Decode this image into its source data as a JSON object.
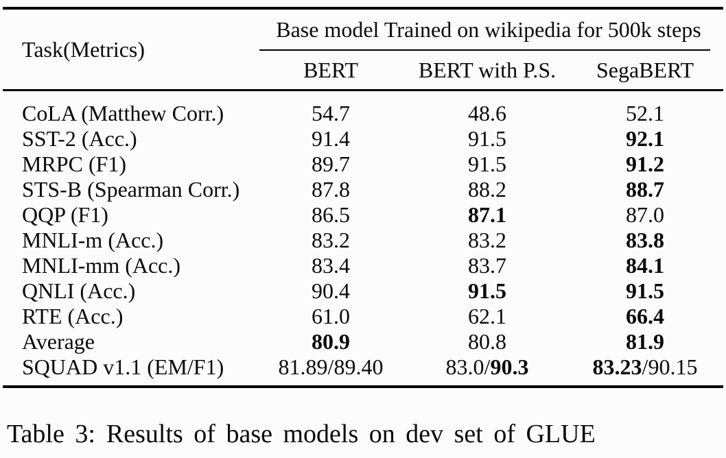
{
  "table": {
    "corner_header": "Task(Metrics)",
    "span_header": "Base model Trained on wikipedia for 500k steps",
    "columns": [
      "BERT",
      "BERT with P.S.",
      "SegaBERT"
    ],
    "rows": [
      {
        "task": "CoLA (Matthew Corr.)",
        "cells": [
          [
            {
              "text": "54.7",
              "bold": false
            }
          ],
          [
            {
              "text": "48.6",
              "bold": false
            }
          ],
          [
            {
              "text": "52.1",
              "bold": false
            }
          ]
        ]
      },
      {
        "task": "SST-2 (Acc.)",
        "cells": [
          [
            {
              "text": "91.4",
              "bold": false
            }
          ],
          [
            {
              "text": "91.5",
              "bold": false
            }
          ],
          [
            {
              "text": "92.1",
              "bold": true
            }
          ]
        ]
      },
      {
        "task": "MRPC (F1)",
        "cells": [
          [
            {
              "text": "89.7",
              "bold": false
            }
          ],
          [
            {
              "text": "91.5",
              "bold": false
            }
          ],
          [
            {
              "text": "91.2",
              "bold": true
            }
          ]
        ]
      },
      {
        "task": "STS-B (Spearman Corr.)",
        "cells": [
          [
            {
              "text": "87.8",
              "bold": false
            }
          ],
          [
            {
              "text": "88.2",
              "bold": false
            }
          ],
          [
            {
              "text": "88.7",
              "bold": true
            }
          ]
        ]
      },
      {
        "task": "QQP (F1)",
        "cells": [
          [
            {
              "text": "86.5",
              "bold": false
            }
          ],
          [
            {
              "text": "87.1",
              "bold": true
            }
          ],
          [
            {
              "text": "87.0",
              "bold": false
            }
          ]
        ]
      },
      {
        "task": "MNLI-m (Acc.)",
        "cells": [
          [
            {
              "text": "83.2",
              "bold": false
            }
          ],
          [
            {
              "text": "83.2",
              "bold": false
            }
          ],
          [
            {
              "text": "83.8",
              "bold": true
            }
          ]
        ]
      },
      {
        "task": "MNLI-mm (Acc.)",
        "cells": [
          [
            {
              "text": "83.4",
              "bold": false
            }
          ],
          [
            {
              "text": "83.7",
              "bold": false
            }
          ],
          [
            {
              "text": "84.1",
              "bold": true
            }
          ]
        ]
      },
      {
        "task": "QNLI (Acc.)",
        "cells": [
          [
            {
              "text": "90.4",
              "bold": false
            }
          ],
          [
            {
              "text": "91.5",
              "bold": true
            }
          ],
          [
            {
              "text": "91.5",
              "bold": true
            }
          ]
        ]
      },
      {
        "task": "RTE (Acc.)",
        "cells": [
          [
            {
              "text": "61.0",
              "bold": false
            }
          ],
          [
            {
              "text": "62.1",
              "bold": false
            }
          ],
          [
            {
              "text": "66.4",
              "bold": true
            }
          ]
        ]
      },
      {
        "task": "Average",
        "cells": [
          [
            {
              "text": "80.9",
              "bold": true
            }
          ],
          [
            {
              "text": "80.8",
              "bold": false
            }
          ],
          [
            {
              "text": "81.9",
              "bold": true
            }
          ]
        ]
      },
      {
        "task": "SQUAD v1.1 (EM/F1)",
        "cells": [
          [
            {
              "text": "81.89/89.40",
              "bold": false
            }
          ],
          [
            {
              "text": "83.0/",
              "bold": false
            },
            {
              "text": "90.3",
              "bold": true
            }
          ],
          [
            {
              "text": "83.23",
              "bold": true
            },
            {
              "text": "/90.15",
              "bold": false
            }
          ]
        ]
      }
    ]
  },
  "caption": {
    "label": "Table 3:",
    "text": "Results of base models on dev set of GLUE"
  },
  "colors": {
    "background": "#fcfcfc",
    "text": "#0a0a0a",
    "rule": "#000000"
  }
}
